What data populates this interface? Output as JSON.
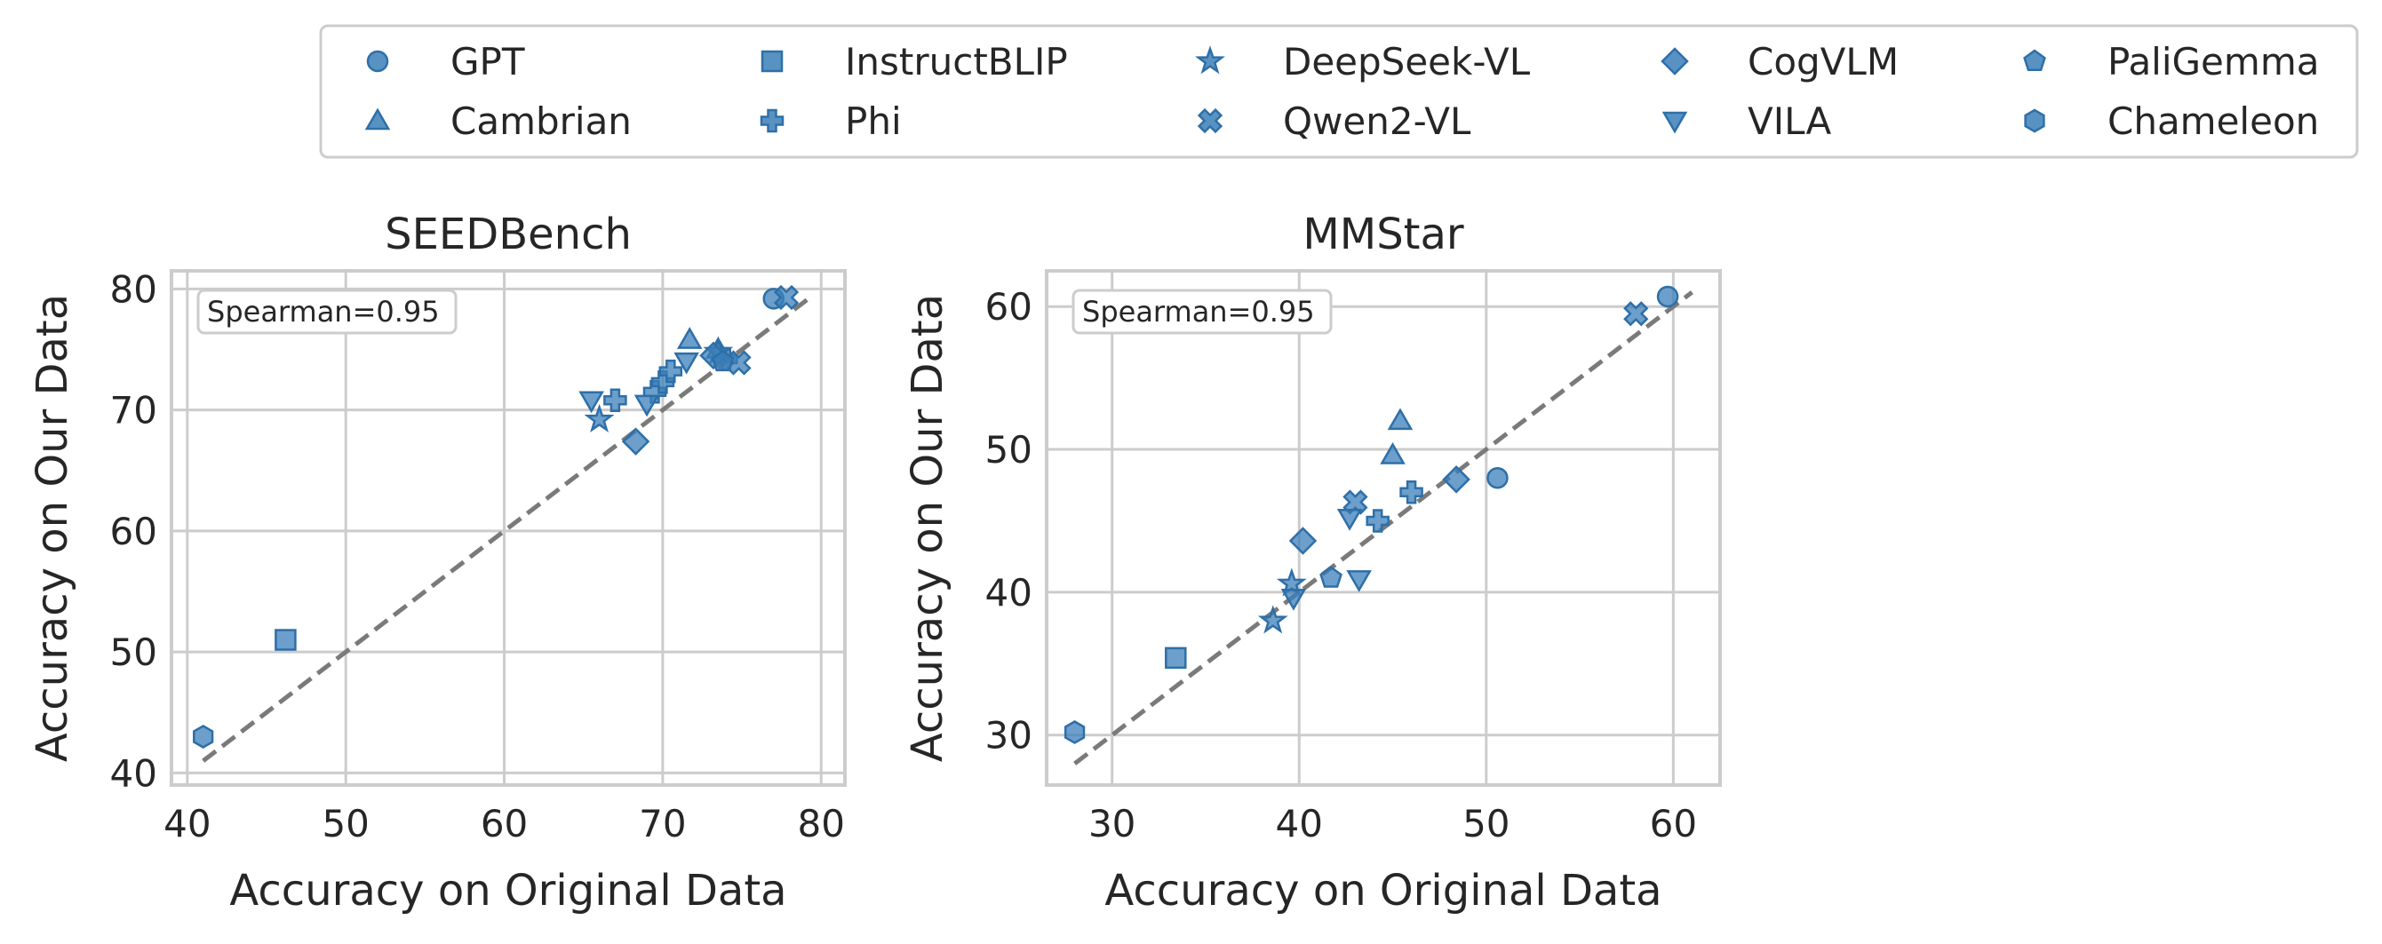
{
  "colors": {
    "marker_fill": "#3b7fb9",
    "marker_edge": "#2e6fa8",
    "grid": "#cccccc",
    "frame": "#cccccc",
    "diagonal": "#7a7a7a"
  },
  "legend": {
    "entries": [
      {
        "label": "GPT",
        "marker": "circle"
      },
      {
        "label": "Cambrian",
        "marker": "triangle-up"
      },
      {
        "label": "InstructBLIP",
        "marker": "square"
      },
      {
        "label": "Phi",
        "marker": "plus"
      },
      {
        "label": "DeepSeek-VL",
        "marker": "star"
      },
      {
        "label": "Qwen2-VL",
        "marker": "x"
      },
      {
        "label": "CogVLM",
        "marker": "diamond"
      },
      {
        "label": "VILA",
        "marker": "triangle-down"
      },
      {
        "label": "PaliGemma",
        "marker": "pentagon"
      },
      {
        "label": "Chameleon",
        "marker": "hexagon"
      }
    ]
  },
  "chart_data": [
    {
      "type": "scatter",
      "title": "SEEDBench",
      "xlabel": "Accuracy on Original Data",
      "ylabel": "Accuracy on Our Data",
      "annotation": "Spearman=0.95",
      "xlim": [
        39,
        81.5
      ],
      "ylim": [
        39,
        81.5
      ],
      "xticks": [
        40,
        50,
        60,
        70,
        80
      ],
      "yticks": [
        40,
        50,
        60,
        70,
        80
      ],
      "diagonal": [
        41,
        79.5
      ],
      "points": [
        {
          "model": "GPT",
          "x": 77.0,
          "y": 79.2
        },
        {
          "model": "Cambrian",
          "x": 71.7,
          "y": 75.8
        },
        {
          "model": "Cambrian",
          "x": 73.5,
          "y": 75.0
        },
        {
          "model": "InstructBLIP",
          "x": 46.2,
          "y": 51.0
        },
        {
          "model": "Phi",
          "x": 67.0,
          "y": 70.8
        },
        {
          "model": "Phi",
          "x": 69.5,
          "y": 71.5
        },
        {
          "model": "Phi",
          "x": 70.0,
          "y": 72.3
        },
        {
          "model": "Phi",
          "x": 70.5,
          "y": 73.2
        },
        {
          "model": "Phi",
          "x": 74.0,
          "y": 74.2
        },
        {
          "model": "DeepSeek-VL",
          "x": 66.0,
          "y": 69.2
        },
        {
          "model": "DeepSeek-VL",
          "x": 73.5,
          "y": 74.8
        },
        {
          "model": "Qwen2-VL",
          "x": 77.8,
          "y": 79.3
        },
        {
          "model": "Qwen2-VL",
          "x": 74.8,
          "y": 73.9
        },
        {
          "model": "CogVLM",
          "x": 68.3,
          "y": 67.4
        },
        {
          "model": "CogVLM",
          "x": 73.2,
          "y": 74.5
        },
        {
          "model": "VILA",
          "x": 65.5,
          "y": 70.8
        },
        {
          "model": "VILA",
          "x": 69.0,
          "y": 70.5
        },
        {
          "model": "VILA",
          "x": 71.5,
          "y": 74.0
        },
        {
          "model": "PaliGemma",
          "x": 73.8,
          "y": 74.0
        },
        {
          "model": "Chameleon",
          "x": 41.0,
          "y": 43.0
        }
      ]
    },
    {
      "type": "scatter",
      "title": "MMStar",
      "xlabel": "Accuracy on Original Data",
      "ylabel": "Accuracy on Our Data",
      "annotation": "Spearman=0.95",
      "xlim": [
        26.5,
        62.5
      ],
      "ylim": [
        26.5,
        62.5
      ],
      "xticks": [
        30,
        40,
        50,
        60
      ],
      "yticks": [
        30,
        40,
        50,
        60
      ],
      "diagonal": [
        28,
        61
      ],
      "points": [
        {
          "model": "GPT",
          "x": 59.7,
          "y": 60.7
        },
        {
          "model": "GPT",
          "x": 50.6,
          "y": 48.0
        },
        {
          "model": "Cambrian",
          "x": 45.4,
          "y": 52.0
        },
        {
          "model": "Cambrian",
          "x": 45.0,
          "y": 49.6
        },
        {
          "model": "InstructBLIP",
          "x": 33.4,
          "y": 35.4
        },
        {
          "model": "Phi",
          "x": 44.2,
          "y": 45.0
        },
        {
          "model": "Phi",
          "x": 46.0,
          "y": 47.0
        },
        {
          "model": "DeepSeek-VL",
          "x": 38.6,
          "y": 38.0
        },
        {
          "model": "DeepSeek-VL",
          "x": 39.6,
          "y": 40.6
        },
        {
          "model": "Qwen2-VL",
          "x": 58.0,
          "y": 59.5
        },
        {
          "model": "Qwen2-VL",
          "x": 43.0,
          "y": 46.3
        },
        {
          "model": "CogVLM",
          "x": 40.2,
          "y": 43.6
        },
        {
          "model": "CogVLM",
          "x": 48.4,
          "y": 47.9
        },
        {
          "model": "VILA",
          "x": 39.7,
          "y": 39.6
        },
        {
          "model": "VILA",
          "x": 42.7,
          "y": 45.2
        },
        {
          "model": "VILA",
          "x": 43.2,
          "y": 40.9
        },
        {
          "model": "PaliGemma",
          "x": 41.7,
          "y": 41.0
        },
        {
          "model": "Chameleon",
          "x": 28.0,
          "y": 30.2
        }
      ]
    }
  ]
}
